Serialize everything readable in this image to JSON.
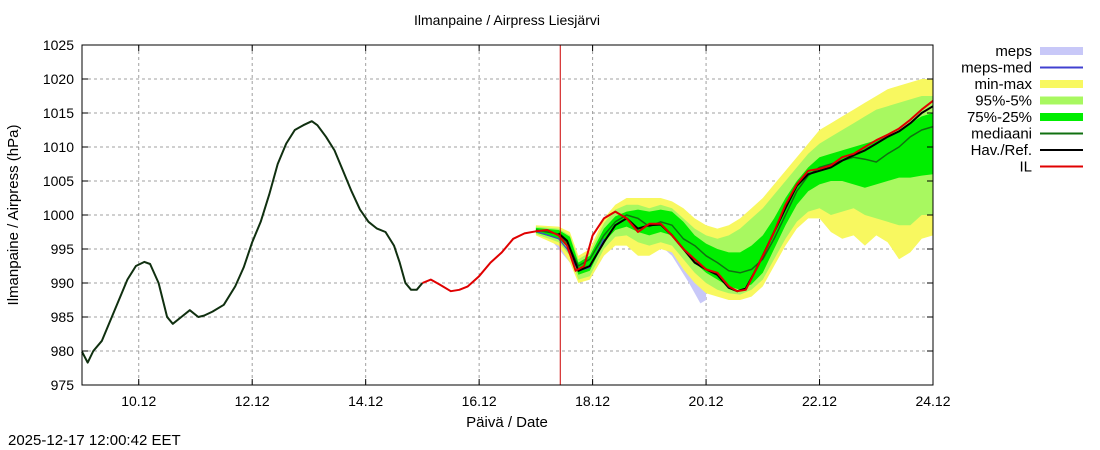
{
  "chart_data": {
    "type": "line",
    "title": "Ilmanpaine / Airpress Liesjärvi",
    "xlabel": "Päivä / Date",
    "ylabel": "Ilmanpaine / Airpress (hPa)",
    "xlim": [
      9.0,
      24.0
    ],
    "ylim": [
      975,
      1025
    ],
    "grid": true,
    "legend_position": "right-outside-top",
    "x_unit": "day of December 2025",
    "xticks": [
      10,
      12,
      14,
      16,
      18,
      20,
      22,
      24
    ],
    "xtick_labels": [
      "10.12",
      "12.12",
      "14.12",
      "16.12",
      "18.12",
      "20.12",
      "22.12",
      "24.12"
    ],
    "yticks": [
      975,
      980,
      985,
      990,
      995,
      1000,
      1005,
      1010,
      1015,
      1020,
      1025
    ],
    "ytick_labels": [
      "975",
      "980",
      "985",
      "990",
      "995",
      "1000",
      "1005",
      "1010",
      "1015",
      "1020",
      "1025"
    ],
    "now_marker_x": 17.43,
    "timestamp": "2025-12-17 12:00:42 EET",
    "legend": [
      {
        "key": "meps",
        "label": "meps",
        "color": "#c8c8f8",
        "style": "band"
      },
      {
        "key": "meps_med",
        "label": "meps-med",
        "color": "#4040d0",
        "style": "line"
      },
      {
        "key": "minmax",
        "label": "min-max",
        "color": "#f8f860",
        "style": "band"
      },
      {
        "key": "p95_5",
        "label": "95%-5%",
        "color": "#a8f860",
        "style": "band"
      },
      {
        "key": "p75_25",
        "label": "75%-25%",
        "color": "#00ee00",
        "style": "band"
      },
      {
        "key": "median",
        "label": "mediaani",
        "color": "#107010",
        "style": "line"
      },
      {
        "key": "obs",
        "label": "Hav./Ref.",
        "color": "#000000",
        "style": "line"
      },
      {
        "key": "il",
        "label": "IL",
        "color": "#e00000",
        "style": "line"
      }
    ],
    "series": {
      "obs": {
        "name": "Hav./Ref.",
        "x": [
          9.0,
          9.1,
          9.2,
          9.35,
          9.5,
          9.65,
          9.8,
          9.95,
          10.1,
          10.2,
          10.35,
          10.5,
          10.6,
          10.75,
          10.9,
          11.05,
          11.15,
          11.3,
          11.5,
          11.7,
          11.85,
          12.0,
          12.15,
          12.3,
          12.45,
          12.6,
          12.75,
          12.9,
          13.05,
          13.15,
          13.3,
          13.45,
          13.6,
          13.75,
          13.9,
          14.05,
          14.2,
          14.35,
          14.5,
          14.6,
          14.7,
          14.8,
          14.9,
          15.0
        ],
        "y": [
          979.9,
          978.3,
          980.0,
          981.5,
          984.5,
          987.5,
          990.5,
          992.5,
          993.1,
          992.8,
          990.0,
          985.0,
          984.0,
          985.0,
          986.0,
          985.0,
          985.2,
          985.8,
          986.8,
          989.5,
          992.3,
          996.0,
          999.0,
          1003.0,
          1007.5,
          1010.5,
          1012.5,
          1013.2,
          1013.8,
          1013.2,
          1011.5,
          1009.5,
          1006.5,
          1003.5,
          1000.8,
          999.0,
          998.0,
          997.5,
          995.5,
          993.0,
          990.0,
          989.0,
          989.0,
          990.0
        ]
      },
      "il": {
        "name": "IL",
        "x": [
          15.0,
          15.15,
          15.3,
          15.5,
          15.65,
          15.8,
          16.0,
          16.2,
          16.4,
          16.6,
          16.8,
          17.0,
          17.2,
          17.4,
          17.55,
          17.7,
          17.85,
          18.0,
          18.2,
          18.4,
          18.6,
          18.8,
          19.0,
          19.2,
          19.4,
          19.6,
          19.8,
          20.0,
          20.2,
          20.4,
          20.55,
          20.7,
          20.85,
          21.0,
          21.2,
          21.4,
          21.6,
          21.8,
          22.0,
          22.2,
          22.4,
          22.6,
          22.8,
          23.0,
          23.2,
          23.4,
          23.6,
          23.8,
          24.0
        ],
        "y": [
          990.0,
          990.5,
          989.8,
          988.8,
          989.0,
          989.5,
          991.0,
          993.0,
          994.5,
          996.5,
          997.3,
          997.6,
          997.8,
          997.0,
          995.5,
          991.8,
          992.5,
          997.0,
          999.5,
          1000.5,
          999.5,
          997.5,
          998.7,
          998.7,
          997.0,
          995.0,
          993.5,
          992.0,
          991.5,
          989.5,
          988.8,
          989.0,
          991.5,
          994.0,
          997.5,
          1001.5,
          1004.5,
          1006.5,
          1006.8,
          1007.3,
          1008.5,
          1009.0,
          1010.0,
          1011.0,
          1011.8,
          1012.7,
          1014.0,
          1015.5,
          1016.8
        ]
      },
      "median": {
        "name": "mediaani",
        "x": [
          17.0,
          17.4,
          17.55,
          17.75,
          17.95,
          18.2,
          18.4,
          18.6,
          18.8,
          19.0,
          19.2,
          19.4,
          19.6,
          19.8,
          20.0,
          20.2,
          20.4,
          20.6,
          20.8,
          21.0,
          21.2,
          21.4,
          21.6,
          21.8,
          22.0,
          22.2,
          22.4,
          22.6,
          22.8,
          23.0,
          23.2,
          23.4,
          23.6,
          23.8,
          24.0
        ],
        "y": [
          997.8,
          997.2,
          996.0,
          992.5,
          993.5,
          997.0,
          999.0,
          1000.0,
          999.5,
          998.3,
          999.0,
          998.5,
          996.5,
          995.5,
          994.0,
          993.0,
          991.8,
          991.5,
          992.0,
          993.5,
          996.5,
          1000.0,
          1003.5,
          1005.8,
          1007.0,
          1007.5,
          1008.0,
          1008.5,
          1008.2,
          1007.8,
          1009.0,
          1010.0,
          1011.5,
          1012.5,
          1013.0
        ]
      },
      "obs_forecast": {
        "name": "Hav./Ref.",
        "x": [
          17.4,
          17.55,
          17.75,
          17.95,
          18.2,
          18.4,
          18.6,
          18.8,
          19.0,
          19.2,
          19.4,
          19.6,
          19.8,
          20.0,
          20.2,
          20.4,
          20.55,
          20.7,
          20.85,
          21.0,
          21.2,
          21.4,
          21.6,
          21.8,
          22.0,
          22.2,
          22.4,
          22.6,
          22.8,
          23.0,
          23.2,
          23.4,
          23.6,
          23.8,
          24.0
        ],
        "y": [
          997.3,
          996.2,
          991.8,
          992.5,
          996.0,
          998.5,
          999.5,
          998.0,
          998.5,
          998.6,
          997.0,
          995.0,
          993.0,
          992.0,
          991.2,
          989.3,
          988.8,
          989.2,
          991.5,
          994.0,
          997.5,
          1001.0,
          1004.3,
          1006.0,
          1006.5,
          1007.0,
          1008.0,
          1008.8,
          1009.5,
          1010.5,
          1011.5,
          1012.3,
          1013.5,
          1015.0,
          1016.0
        ]
      },
      "meps_med": {
        "name": "meps-med",
        "x": [
          17.0,
          17.4,
          17.55,
          17.75,
          17.95,
          18.2
        ],
        "y": [
          997.6,
          996.5,
          995.0,
          991.8,
          992.3,
          996.5
        ]
      },
      "meps": {
        "name": "meps",
        "x": [
          17.2,
          17.4,
          17.6,
          17.75,
          17.95,
          18.2,
          18.6,
          19.0,
          19.4,
          19.7,
          19.9,
          20.0
        ],
        "lower": [
          997.0,
          995.0,
          993.0,
          990.5,
          990.5,
          994.0,
          997.5,
          997.0,
          994.0,
          990.0,
          987.0,
          987.5
        ],
        "upper": [
          998.0,
          998.0,
          997.0,
          993.0,
          993.5,
          997.5,
          1000.5,
          999.0,
          997.0,
          995.0,
          993.0,
          992.0
        ]
      },
      "minmax": {
        "name": "min-max",
        "x": [
          17.0,
          17.4,
          17.6,
          17.75,
          17.95,
          18.2,
          18.4,
          18.6,
          18.8,
          19.0,
          19.2,
          19.4,
          19.6,
          19.8,
          20.0,
          20.2,
          20.4,
          20.6,
          20.8,
          21.0,
          21.2,
          21.4,
          21.6,
          21.8,
          22.0,
          22.2,
          22.4,
          22.6,
          22.8,
          23.0,
          23.2,
          23.4,
          23.6,
          23.8,
          24.0
        ],
        "lower": [
          997.0,
          995.5,
          993.0,
          990.0,
          990.5,
          994.0,
          995.5,
          995.5,
          994.0,
          994.0,
          995.0,
          994.5,
          992.0,
          990.0,
          988.5,
          988.0,
          987.5,
          987.5,
          988.0,
          989.5,
          992.5,
          995.5,
          998.0,
          999.5,
          999.5,
          997.5,
          996.5,
          997.0,
          995.5,
          997.0,
          996.0,
          993.5,
          994.5,
          996.5,
          997.0
        ],
        "upper": [
          998.5,
          998.3,
          997.5,
          994.0,
          995.0,
          999.5,
          1001.5,
          1002.5,
          1002.5,
          1002.5,
          1002.5,
          1002.0,
          1001.0,
          999.5,
          998.5,
          998.0,
          998.5,
          999.5,
          1001.0,
          1002.5,
          1004.5,
          1006.5,
          1008.5,
          1010.5,
          1012.5,
          1013.5,
          1014.5,
          1015.5,
          1016.5,
          1017.5,
          1018.5,
          1019.0,
          1019.5,
          1020.0,
          1020.0
        ]
      },
      "p95_5": {
        "name": "95%-5%",
        "x": [
          17.0,
          17.4,
          17.6,
          17.75,
          17.95,
          18.2,
          18.4,
          18.6,
          18.8,
          19.0,
          19.2,
          19.4,
          19.6,
          19.8,
          20.0,
          20.2,
          20.4,
          20.6,
          20.8,
          21.0,
          21.2,
          21.4,
          21.6,
          21.8,
          22.0,
          22.2,
          22.4,
          22.6,
          22.8,
          23.0,
          23.2,
          23.4,
          23.6,
          23.8,
          24.0
        ],
        "lower": [
          997.2,
          996.0,
          994.0,
          990.5,
          991.0,
          995.0,
          996.8,
          997.0,
          996.0,
          995.5,
          996.0,
          995.5,
          993.5,
          991.5,
          990.0,
          989.0,
          988.5,
          988.3,
          989.0,
          990.5,
          993.5,
          996.5,
          999.0,
          1000.5,
          1001.0,
          1000.0,
          1000.5,
          1001.0,
          1000.0,
          999.5,
          999.0,
          998.5,
          998.5,
          1000.0,
          1000.0
        ],
        "upper": [
          998.3,
          998.0,
          997.0,
          993.5,
          994.5,
          998.8,
          1000.8,
          1001.5,
          1001.5,
          1001.0,
          1001.5,
          1001.0,
          999.5,
          998.0,
          997.0,
          996.5,
          997.0,
          998.0,
          999.5,
          1001.0,
          1003.0,
          1005.0,
          1007.0,
          1009.0,
          1010.5,
          1011.5,
          1012.5,
          1013.5,
          1014.5,
          1015.5,
          1016.0,
          1016.5,
          1017.0,
          1017.5,
          1017.5
        ]
      },
      "p75_25": {
        "name": "75%-25%",
        "x": [
          17.0,
          17.4,
          17.6,
          17.75,
          17.95,
          18.2,
          18.4,
          18.6,
          18.8,
          19.0,
          19.2,
          19.4,
          19.6,
          19.8,
          20.0,
          20.2,
          20.4,
          20.6,
          20.8,
          21.0,
          21.2,
          21.4,
          21.6,
          21.8,
          22.0,
          22.2,
          22.4,
          22.6,
          22.8,
          23.0,
          23.2,
          23.4,
          23.6,
          23.8,
          24.0
        ],
        "lower": [
          997.4,
          996.5,
          995.0,
          991.2,
          991.8,
          996.0,
          997.8,
          998.3,
          997.5,
          997.0,
          997.5,
          997.0,
          995.0,
          993.0,
          991.5,
          990.5,
          989.5,
          989.0,
          989.8,
          991.5,
          995.0,
          998.5,
          1001.5,
          1003.5,
          1004.5,
          1005.0,
          1005.0,
          1004.5,
          1004.0,
          1004.5,
          1005.0,
          1005.5,
          1005.5,
          1005.8,
          1006.0
        ],
        "upper": [
          998.1,
          997.8,
          996.8,
          993.0,
          994.0,
          998.0,
          999.8,
          1000.5,
          1000.8,
          1000.5,
          1000.8,
          1000.5,
          999.0,
          997.0,
          995.8,
          995.0,
          994.5,
          994.5,
          995.5,
          997.0,
          999.5,
          1002.5,
          1005.0,
          1007.0,
          1008.5,
          1009.0,
          1009.5,
          1010.0,
          1010.5,
          1011.0,
          1011.5,
          1012.5,
          1013.5,
          1014.5,
          1015.0
        ]
      }
    }
  }
}
